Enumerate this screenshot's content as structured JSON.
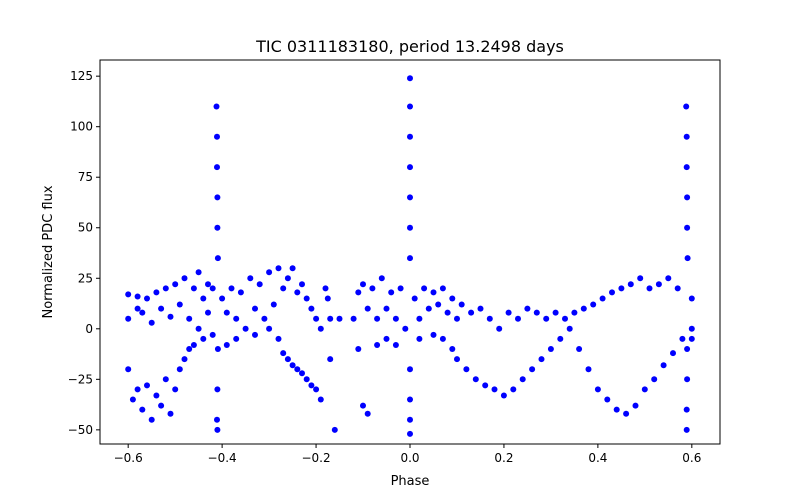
{
  "chart_data": {
    "type": "scatter",
    "title": "TIC 0311183180, period 13.2498 days",
    "xlabel": "Phase",
    "ylabel": "Normalized PDC flux",
    "xlim": [
      -0.66,
      0.66
    ],
    "ylim": [
      -57,
      133
    ],
    "xticks": [
      -0.6,
      -0.4,
      -0.2,
      0.0,
      0.2,
      0.4,
      0.6
    ],
    "xtick_labels": [
      "−0.6",
      "−0.4",
      "−0.2",
      "0.0",
      "0.2",
      "0.4",
      "0.6"
    ],
    "yticks": [
      -50,
      -25,
      0,
      25,
      50,
      75,
      100,
      125
    ],
    "ytick_labels": [
      "−50",
      "−25",
      "0",
      "25",
      "50",
      "75",
      "100",
      "125"
    ],
    "grid": false,
    "marker_color": "#0000ff",
    "series": [
      {
        "name": "",
        "points": [
          [
            -0.6,
            17
          ],
          [
            -0.6,
            5
          ],
          [
            -0.6,
            -20
          ],
          [
            -0.59,
            -35
          ],
          [
            -0.58,
            16
          ],
          [
            -0.58,
            10
          ],
          [
            -0.58,
            -30
          ],
          [
            -0.57,
            8
          ],
          [
            -0.57,
            -40
          ],
          [
            -0.56,
            15
          ],
          [
            -0.56,
            -28
          ],
          [
            -0.55,
            3
          ],
          [
            -0.55,
            -45
          ],
          [
            -0.54,
            18
          ],
          [
            -0.54,
            -33
          ],
          [
            -0.53,
            10
          ],
          [
            -0.53,
            -38
          ],
          [
            -0.52,
            20
          ],
          [
            -0.52,
            -25
          ],
          [
            -0.51,
            6
          ],
          [
            -0.51,
            -42
          ],
          [
            -0.5,
            22
          ],
          [
            -0.5,
            -30
          ],
          [
            -0.49,
            12
          ],
          [
            -0.49,
            -20
          ],
          [
            -0.48,
            25
          ],
          [
            -0.48,
            -15
          ],
          [
            -0.47,
            5
          ],
          [
            -0.47,
            -10
          ],
          [
            -0.46,
            20
          ],
          [
            -0.46,
            -8
          ],
          [
            -0.45,
            28
          ],
          [
            -0.45,
            0
          ],
          [
            -0.44,
            15
          ],
          [
            -0.44,
            -5
          ],
          [
            -0.43,
            22
          ],
          [
            -0.43,
            8
          ],
          [
            -0.42,
            20
          ],
          [
            -0.42,
            -3
          ],
          [
            -0.412,
            110
          ],
          [
            -0.411,
            95
          ],
          [
            -0.411,
            80
          ],
          [
            -0.41,
            65
          ],
          [
            -0.41,
            50
          ],
          [
            -0.409,
            35
          ],
          [
            -0.409,
            -10
          ],
          [
            -0.41,
            -30
          ],
          [
            -0.411,
            -45
          ],
          [
            -0.41,
            -50
          ],
          [
            -0.4,
            15
          ],
          [
            -0.39,
            8
          ],
          [
            -0.39,
            -8
          ],
          [
            -0.38,
            20
          ],
          [
            -0.37,
            5
          ],
          [
            -0.37,
            -5
          ],
          [
            -0.36,
            18
          ],
          [
            -0.35,
            0
          ],
          [
            -0.34,
            25
          ],
          [
            -0.33,
            10
          ],
          [
            -0.33,
            -3
          ],
          [
            -0.32,
            22
          ],
          [
            -0.31,
            5
          ],
          [
            -0.3,
            28
          ],
          [
            -0.3,
            0
          ],
          [
            -0.29,
            12
          ],
          [
            -0.28,
            30
          ],
          [
            -0.28,
            -5
          ],
          [
            -0.27,
            20
          ],
          [
            -0.27,
            -12
          ],
          [
            -0.26,
            25
          ],
          [
            -0.26,
            -15
          ],
          [
            -0.25,
            30
          ],
          [
            -0.25,
            -18
          ],
          [
            -0.24,
            18
          ],
          [
            -0.24,
            -20
          ],
          [
            -0.23,
            22
          ],
          [
            -0.23,
            -22
          ],
          [
            -0.22,
            15
          ],
          [
            -0.22,
            -25
          ],
          [
            -0.21,
            10
          ],
          [
            -0.21,
            -28
          ],
          [
            -0.2,
            5
          ],
          [
            -0.2,
            -30
          ],
          [
            -0.19,
            0
          ],
          [
            -0.19,
            -35
          ],
          [
            -0.18,
            20
          ],
          [
            -0.175,
            15
          ],
          [
            -0.17,
            5
          ],
          [
            -0.17,
            -15
          ],
          [
            -0.16,
            -50
          ],
          [
            -0.15,
            5
          ],
          [
            -0.12,
            5
          ],
          [
            -0.11,
            18
          ],
          [
            -0.11,
            -10
          ],
          [
            -0.1,
            22
          ],
          [
            -0.1,
            -38
          ],
          [
            -0.09,
            10
          ],
          [
            -0.09,
            -42
          ],
          [
            -0.08,
            20
          ],
          [
            -0.07,
            5
          ],
          [
            -0.07,
            -8
          ],
          [
            -0.06,
            25
          ],
          [
            -0.05,
            10
          ],
          [
            -0.05,
            -5
          ],
          [
            -0.04,
            18
          ],
          [
            -0.03,
            5
          ],
          [
            -0.03,
            -8
          ],
          [
            -0.02,
            20
          ],
          [
            -0.01,
            0
          ],
          [
            0.0,
            124
          ],
          [
            0.0,
            110
          ],
          [
            0.0,
            95
          ],
          [
            0.0,
            80
          ],
          [
            0.0,
            65
          ],
          [
            0.0,
            50
          ],
          [
            0.0,
            35
          ],
          [
            0.0,
            -20
          ],
          [
            0.0,
            -35
          ],
          [
            0.0,
            -45
          ],
          [
            0.0,
            -52
          ],
          [
            0.01,
            15
          ],
          [
            0.02,
            5
          ],
          [
            0.02,
            -5
          ],
          [
            0.03,
            20
          ],
          [
            0.04,
            10
          ],
          [
            0.05,
            18
          ],
          [
            0.05,
            -3
          ],
          [
            0.06,
            12
          ],
          [
            0.07,
            20
          ],
          [
            0.07,
            -5
          ],
          [
            0.08,
            8
          ],
          [
            0.09,
            15
          ],
          [
            0.09,
            -10
          ],
          [
            0.1,
            5
          ],
          [
            0.1,
            -15
          ],
          [
            0.11,
            12
          ],
          [
            0.12,
            -20
          ],
          [
            0.13,
            8
          ],
          [
            0.14,
            -25
          ],
          [
            0.15,
            10
          ],
          [
            0.16,
            -28
          ],
          [
            0.17,
            5
          ],
          [
            0.18,
            -30
          ],
          [
            0.19,
            0
          ],
          [
            0.2,
            -33
          ],
          [
            0.21,
            8
          ],
          [
            0.22,
            -30
          ],
          [
            0.23,
            5
          ],
          [
            0.24,
            -25
          ],
          [
            0.25,
            10
          ],
          [
            0.26,
            -20
          ],
          [
            0.27,
            8
          ],
          [
            0.28,
            -15
          ],
          [
            0.29,
            5
          ],
          [
            0.3,
            -10
          ],
          [
            0.31,
            8
          ],
          [
            0.32,
            -5
          ],
          [
            0.33,
            5
          ],
          [
            0.34,
            0
          ],
          [
            0.35,
            8
          ],
          [
            0.36,
            -10
          ],
          [
            0.37,
            10
          ],
          [
            0.38,
            -20
          ],
          [
            0.39,
            12
          ],
          [
            0.4,
            -30
          ],
          [
            0.41,
            15
          ],
          [
            0.42,
            -35
          ],
          [
            0.43,
            18
          ],
          [
            0.44,
            -40
          ],
          [
            0.45,
            20
          ],
          [
            0.46,
            -42
          ],
          [
            0.47,
            22
          ],
          [
            0.48,
            -38
          ],
          [
            0.49,
            25
          ],
          [
            0.5,
            -30
          ],
          [
            0.51,
            20
          ],
          [
            0.52,
            -25
          ],
          [
            0.53,
            22
          ],
          [
            0.54,
            -18
          ],
          [
            0.55,
            25
          ],
          [
            0.56,
            -12
          ],
          [
            0.57,
            20
          ],
          [
            0.58,
            -5
          ],
          [
            0.588,
            110
          ],
          [
            0.589,
            95
          ],
          [
            0.589,
            80
          ],
          [
            0.59,
            65
          ],
          [
            0.59,
            50
          ],
          [
            0.591,
            35
          ],
          [
            0.59,
            -10
          ],
          [
            0.59,
            -25
          ],
          [
            0.589,
            -40
          ],
          [
            0.589,
            -50
          ],
          [
            0.6,
            15
          ],
          [
            0.6,
            0
          ],
          [
            0.6,
            -5
          ]
        ]
      }
    ]
  }
}
